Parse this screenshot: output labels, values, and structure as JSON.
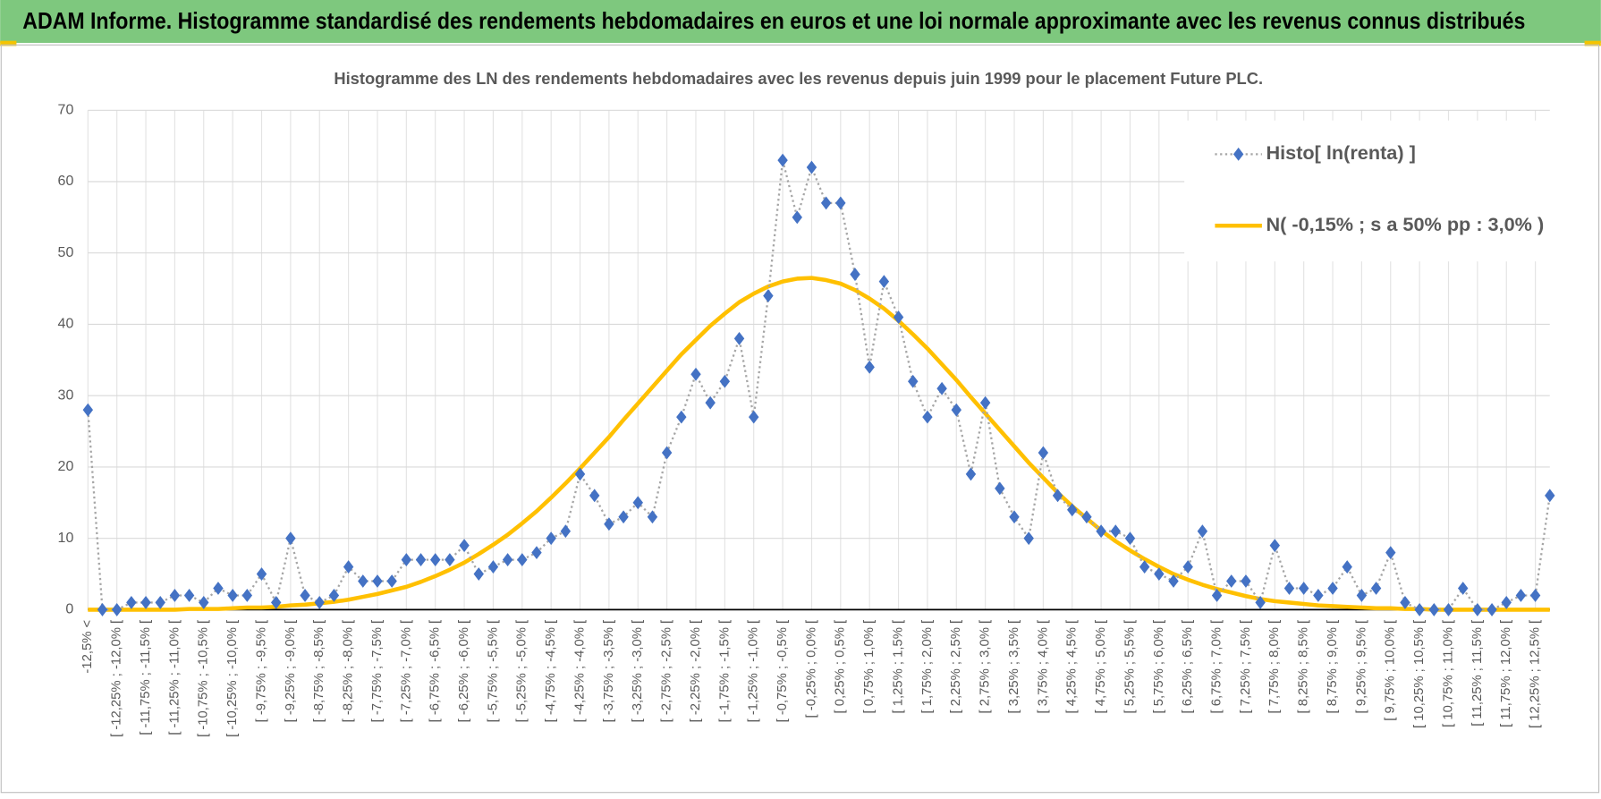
{
  "header": {
    "title": "ADAM Informe. Histogramme standardisé des rendements hebdomadaires en euros et une loi normale approximante avec les revenus connus distribués"
  },
  "chart_data": {
    "type": "line",
    "title": "Histogramme des LN des rendements hebdomadaires avec les revenus depuis juin 1999 pour le placement Future PLC.",
    "categories": [
      "-12,5% <",
      null,
      "[ -12,25% ; -12,0% [",
      null,
      "[ -11,75% ; -11,5% [",
      null,
      "[ -11,25% ; -11,0% [",
      null,
      "[ -10,75% ; -10,5% [",
      null,
      "[ -10,25% ; -10,0% [",
      null,
      "[ -9,75% ; -9,5% [",
      null,
      "[ -9,25% ; -9,0% [",
      null,
      "[ -8,75% ; -8,5% [",
      null,
      "[ -8,25% ; -8,0% [",
      null,
      "[ -7,75% ; -7,5% [",
      null,
      "[ -7,25% ; -7,0% [",
      null,
      "[ -6,75% ; -6,5% [",
      null,
      "[ -6,25% ; -6,0% [",
      null,
      "[ -5,75% ; -5,5% [",
      null,
      "[ -5,25% ; -5,0% [",
      null,
      "[ -4,75% ; -4,5% [",
      null,
      "[ -4,25% ; -4,0% [",
      null,
      "[ -3,75% ; -3,5% [",
      null,
      "[ -3,25% ; -3,0% [",
      null,
      "[ -2,75% ; -2,5% [",
      null,
      "[ -2,25% ; -2,0% [",
      null,
      "[ -1,75% ; -1,5% [",
      null,
      "[ -1,25% ; -1,0% [",
      null,
      "[ -0,75% ; -0,5% [",
      null,
      "[ -0,25% ; 0,0% [",
      null,
      "[ 0,25% ; 0,5% [",
      null,
      "[ 0,75% ; 1,0% [",
      null,
      "[ 1,25% ; 1,5% [",
      null,
      "[ 1,75% ; 2,0% [",
      null,
      "[ 2,25% ; 2,5% [",
      null,
      "[ 2,75% ; 3,0% [",
      null,
      "[ 3,25% ; 3,5% [",
      null,
      "[ 3,75% ; 4,0% [",
      null,
      "[ 4,25% ; 4,5% [",
      null,
      "[ 4,75% ; 5,0% [",
      null,
      "[ 5,25% ; 5,5% [",
      null,
      "[ 5,75% ; 6,0% [",
      null,
      "[ 6,25% ; 6,5% [",
      null,
      "[ 6,75% ; 7,0% [",
      null,
      "[ 7,25% ; 7,5% [",
      null,
      "[ 7,75% ; 8,0% [",
      null,
      "[ 8,25% ; 8,5% [",
      null,
      "[ 8,75% ; 9,0% [",
      null,
      "[ 9,25% ; 9,5% [",
      null,
      "[ 9,75% ; 10,0% [",
      null,
      "[ 10,25% ; 10,5% [",
      null,
      "[ 10,75% ; 11,0% [",
      null,
      "[ 11,25% ; 11,5% [",
      null,
      "[ 11,75% ; 12,0% [",
      null,
      "[ 12,25% ; 12,5% [",
      null
    ],
    "series": [
      {
        "name": "Histo[ ln(renta) ]",
        "color": "#4472c4",
        "line_color": "#a6a6a6",
        "values": [
          28,
          0,
          0,
          1,
          1,
          1,
          2,
          2,
          1,
          3,
          2,
          2,
          5,
          1,
          10,
          2,
          1,
          2,
          6,
          4,
          4,
          4,
          7,
          7,
          7,
          7,
          9,
          5,
          6,
          7,
          7,
          8,
          10,
          11,
          19,
          16,
          12,
          13,
          15,
          13,
          22,
          27,
          33,
          29,
          32,
          38,
          27,
          44,
          63,
          55,
          62,
          57,
          57,
          47,
          34,
          46,
          41,
          32,
          27,
          31,
          28,
          19,
          29,
          17,
          13,
          10,
          22,
          16,
          14,
          13,
          11,
          11,
          10,
          6,
          5,
          4,
          6,
          11,
          2,
          4,
          4,
          1,
          9,
          3,
          3,
          2,
          3,
          6,
          2,
          3,
          8,
          1,
          0,
          0,
          0,
          3,
          0,
          0,
          1,
          2,
          2,
          16
        ]
      },
      {
        "name": "N( -0,15% ; s a 50% pp : 3,0% )",
        "color": "#ffc000",
        "values": [
          0,
          0,
          0,
          0,
          0,
          0,
          0,
          0.1,
          0.1,
          0.1,
          0.2,
          0.3,
          0.3,
          0.4,
          0.6,
          0.7,
          0.9,
          1.1,
          1.4,
          1.8,
          2.2,
          2.7,
          3.2,
          3.9,
          4.7,
          5.6,
          6.6,
          7.8,
          9.1,
          10.5,
          12.1,
          13.8,
          15.7,
          17.7,
          19.8,
          22.0,
          24.2,
          26.6,
          28.9,
          31.2,
          33.5,
          35.8,
          37.8,
          39.8,
          41.5,
          43.1,
          44.3,
          45.3,
          46.0,
          46.4,
          46.5,
          46.2,
          45.7,
          44.8,
          43.6,
          42.2,
          40.5,
          38.6,
          36.6,
          34.4,
          32.2,
          29.8,
          27.5,
          25.2,
          22.9,
          20.6,
          18.5,
          16.4,
          14.5,
          12.8,
          11.1,
          9.6,
          8.3,
          7.1,
          6.0,
          5.0,
          4.2,
          3.5,
          2.9,
          2.4,
          1.9,
          1.5,
          1.2,
          1.0,
          0.8,
          0.6,
          0.5,
          0.4,
          0.3,
          0.2,
          0.2,
          0.1,
          0.1,
          0,
          0,
          0,
          0,
          0,
          0,
          0,
          0,
          0
        ]
      }
    ],
    "ylim": [
      0,
      70
    ],
    "yticks": [
      0,
      10,
      20,
      30,
      40,
      50,
      60,
      70
    ],
    "grid": true,
    "legend": "top-right"
  }
}
